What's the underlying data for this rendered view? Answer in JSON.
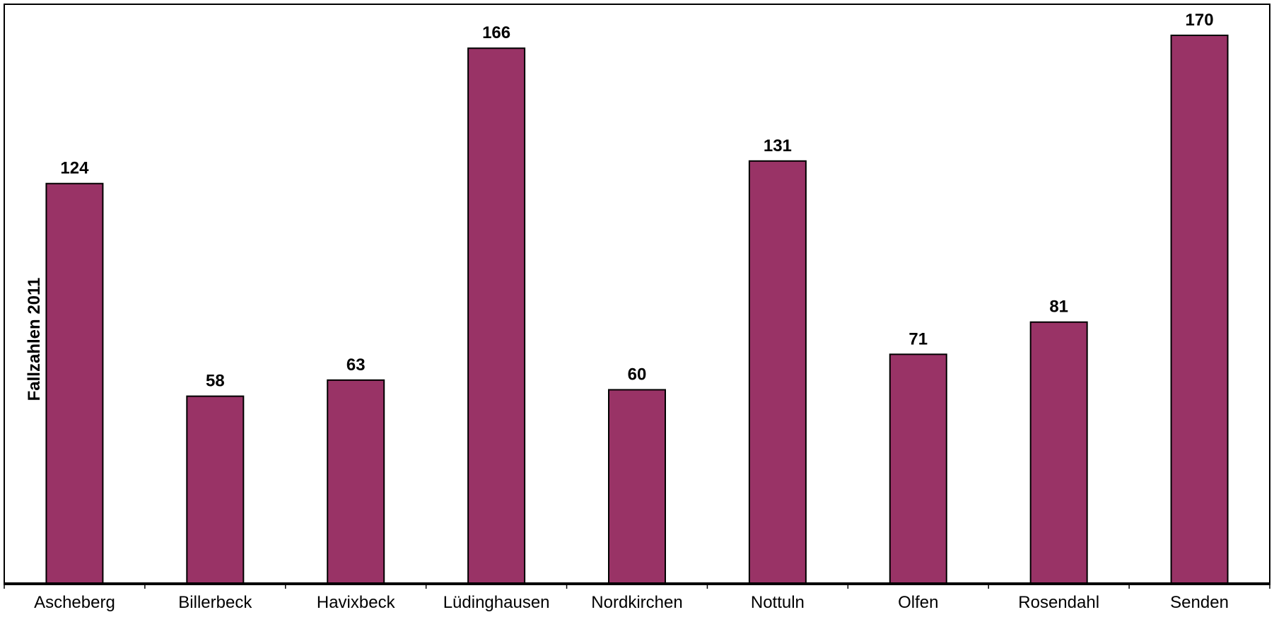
{
  "chart_data": {
    "type": "bar",
    "categories": [
      "Ascheberg",
      "Billerbeck",
      "Havixbeck",
      "Lüdinghausen",
      "Nordkirchen",
      "Nottuln",
      "Olfen",
      "Rosendahl",
      "Senden"
    ],
    "values": [
      124,
      58,
      63,
      166,
      60,
      131,
      71,
      81,
      170
    ],
    "data_labels": [
      "124",
      "58",
      "63",
      "166",
      "60",
      "131",
      "71",
      "81",
      "170"
    ],
    "ylabel": "Fallzahlen 2011",
    "xlabel": "",
    "ylim": [
      0,
      170
    ],
    "grid": false,
    "legend": "none",
    "bar_color": "#993366",
    "bar_border_color": "#000000"
  }
}
